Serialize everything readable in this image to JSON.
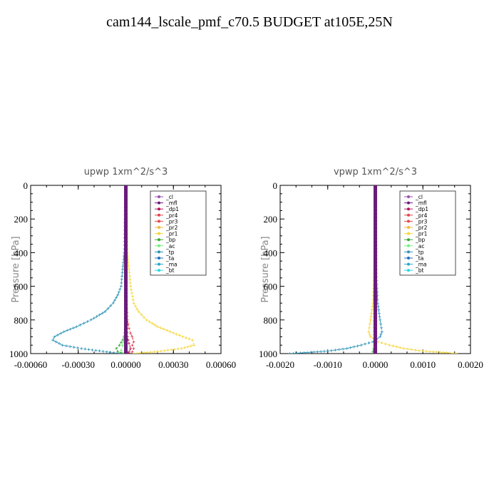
{
  "title": "cam144_lscale_pmf_c70.5  BUDGET at105E,25N",
  "chart_data": [
    {
      "type": "line",
      "title": "upwp   1xm^2/s^3",
      "ylabel": "Pressure [hPa]",
      "xlabel": "",
      "xlim": [
        -0.0006,
        0.0006
      ],
      "ylim": [
        1000,
        0
      ],
      "xticks": [
        "-0.00060",
        "-0.00030",
        "0.00000",
        "0.00030",
        "0.00060"
      ],
      "xtick_values": [
        -0.0006,
        -0.0003,
        0.0,
        0.0003,
        0.0006
      ],
      "yticks": [
        "0",
        "200",
        "400",
        "600",
        "800",
        "1000"
      ],
      "ytick_values": [
        0,
        200,
        400,
        600,
        800,
        1000
      ],
      "legend": [
        "_cl",
        "_mfl",
        "_dp1",
        "_pr4",
        "_pr3",
        "_pr2",
        "_pr1",
        "_bp",
        "_ac",
        "_tp",
        "_ta",
        "_ma",
        "_bt"
      ],
      "series": [
        {
          "name": "_pr1",
          "color": "#f5d63a",
          "p": [
            0,
            200,
            400,
            500,
            600,
            700,
            750,
            800,
            840,
            870,
            900,
            920,
            950,
            970,
            990,
            1000
          ],
          "x": [
            0,
            5e-06,
            1e-05,
            2e-05,
            3e-05,
            5e-05,
            8e-05,
            0.00013,
            0.0002,
            0.00028,
            0.00036,
            0.00042,
            0.00043,
            0.00035,
            0.00018,
            5e-05
          ]
        },
        {
          "name": "_tp",
          "color": "#2f94b8",
          "p": [
            0,
            200,
            400,
            500,
            600,
            650,
            700,
            750,
            800,
            840,
            870,
            900,
            920,
            950,
            970,
            990,
            1000
          ],
          "x": [
            0,
            -5e-06,
            -1e-05,
            -2e-05,
            -3e-05,
            -5e-05,
            -8e-05,
            -0.00013,
            -0.00022,
            -0.00031,
            -0.00039,
            -0.00045,
            -0.00046,
            -0.0004,
            -0.00028,
            -0.00012,
            -3e-05
          ]
        },
        {
          "name": "_pr4",
          "color": "#e0454f",
          "p": [
            0,
            600,
            800,
            850,
            880,
            900,
            930,
            950,
            970,
            990,
            1000
          ],
          "x": [
            0,
            0,
            1e-05,
            2e-05,
            3e-05,
            4e-05,
            5e-05,
            4e-05,
            5e-05,
            4e-05,
            1e-05
          ]
        },
        {
          "name": "_dp1",
          "color": "#b0185a",
          "p": [
            0,
            700,
            850,
            900,
            940,
            970,
            990,
            1000
          ],
          "x": [
            0,
            0,
            5e-06,
            1e-05,
            2e-05,
            3e-05,
            2e-05,
            1e-05
          ]
        },
        {
          "name": "_bp",
          "color": "#3aa836",
          "p": [
            0,
            800,
            880,
            920,
            950,
            970,
            990,
            1000
          ],
          "x": [
            0,
            0,
            -5e-06,
            -2e-05,
            -4e-05,
            -6e-05,
            -5e-05,
            -1e-05
          ]
        },
        {
          "name": "_ac",
          "color": "#6ef27a",
          "p": [
            0,
            850,
            900,
            950,
            980,
            1000
          ],
          "x": [
            0,
            -3e-06,
            -8e-06,
            -2e-05,
            -3e-05,
            -1e-05
          ]
        },
        {
          "name": "_mfl",
          "color": "#6a1b7a",
          "p": [
            0,
            1000
          ],
          "x": [
            0,
            0
          ]
        }
      ]
    },
    {
      "type": "line",
      "title": "vpwp   1xm^2/s^3",
      "ylabel": "Pressure [hPa]",
      "xlabel": "",
      "xlim": [
        -0.002,
        0.002
      ],
      "ylim": [
        1000,
        0
      ],
      "xticks": [
        "-0.0020",
        "-0.0010",
        "0.0000",
        "0.0010",
        "0.0020"
      ],
      "xtick_values": [
        -0.002,
        -0.001,
        0.0,
        0.001,
        0.002
      ],
      "yticks": [
        "0",
        "200",
        "400",
        "600",
        "800",
        "1000"
      ],
      "ytick_values": [
        0,
        200,
        400,
        600,
        800,
        1000
      ],
      "legend": [
        "_cl",
        "_mfl",
        "_dp1",
        "_pr4",
        "_pr3",
        "_pr2",
        "_pr1",
        "_bp",
        "_ac",
        "_tp",
        "_ta",
        "_ma",
        "_bt"
      ],
      "series": [
        {
          "name": "_pr1",
          "color": "#f5d63a",
          "p": [
            0,
            500,
            700,
            800,
            870,
            900,
            930,
            950,
            970,
            985,
            995,
            1000
          ],
          "x": [
            0,
            -2e-05,
            -5e-05,
            -0.0001,
            -0.00014,
            -0.0001,
            5e-05,
            0.0003,
            0.0006,
            0.001,
            0.0015,
            0.0017
          ]
        },
        {
          "name": "_tp",
          "color": "#2f94b8",
          "p": [
            0,
            500,
            700,
            800,
            870,
            900,
            930,
            950,
            970,
            985,
            995,
            1000
          ],
          "x": [
            0,
            2e-05,
            5e-05,
            0.0001,
            0.00014,
            0.0001,
            -5e-05,
            -0.0003,
            -0.0006,
            -0.001,
            -0.0015,
            -0.0018
          ]
        },
        {
          "name": "_bp",
          "color": "#3aa836",
          "p": [
            0,
            950,
            990,
            1000
          ],
          "x": [
            0,
            -2e-05,
            -5e-05,
            -2e-05
          ]
        },
        {
          "name": "_mfl",
          "color": "#6a1b7a",
          "p": [
            0,
            1000
          ],
          "x": [
            0,
            0
          ]
        }
      ]
    }
  ]
}
